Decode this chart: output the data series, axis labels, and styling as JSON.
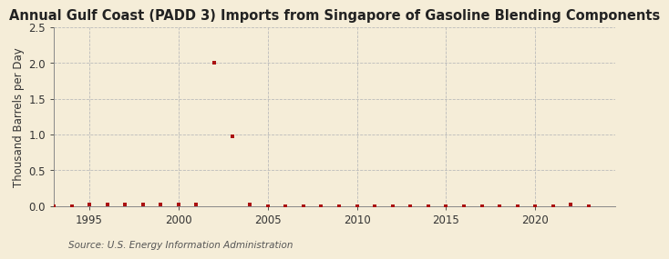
{
  "title": "Annual Gulf Coast (PADD 3) Imports from Singapore of Gasoline Blending Components",
  "ylabel": "Thousand Barrels per Day",
  "source": "Source: U.S. Energy Information Administration",
  "background_color": "#f5edd8",
  "plot_background_color": "#f5edd8",
  "marker_color": "#aa1111",
  "grid_color": "#bbbbbb",
  "xlim": [
    1993,
    2024.5
  ],
  "ylim": [
    0.0,
    2.5
  ],
  "yticks": [
    0.0,
    0.5,
    1.0,
    1.5,
    2.0,
    2.5
  ],
  "xticks": [
    1995,
    2000,
    2005,
    2010,
    2015,
    2020
  ],
  "years": [
    1993,
    1994,
    1995,
    1996,
    1997,
    1998,
    1999,
    2000,
    2001,
    2002,
    2003,
    2004,
    2005,
    2006,
    2007,
    2008,
    2009,
    2010,
    2011,
    2012,
    2013,
    2014,
    2015,
    2016,
    2017,
    2018,
    2019,
    2020,
    2021,
    2022,
    2023
  ],
  "values": [
    0.0,
    0.0,
    0.02,
    0.02,
    0.02,
    0.02,
    0.02,
    0.02,
    0.02,
    2.01,
    0.97,
    0.02,
    0.0,
    0.0,
    0.0,
    0.0,
    0.0,
    0.0,
    0.0,
    0.0,
    0.0,
    0.0,
    0.0,
    0.0,
    0.0,
    0.0,
    0.0,
    0.0,
    0.0,
    0.02,
    0.0
  ],
  "title_fontsize": 10.5,
  "label_fontsize": 8.5,
  "tick_fontsize": 8.5,
  "source_fontsize": 7.5
}
